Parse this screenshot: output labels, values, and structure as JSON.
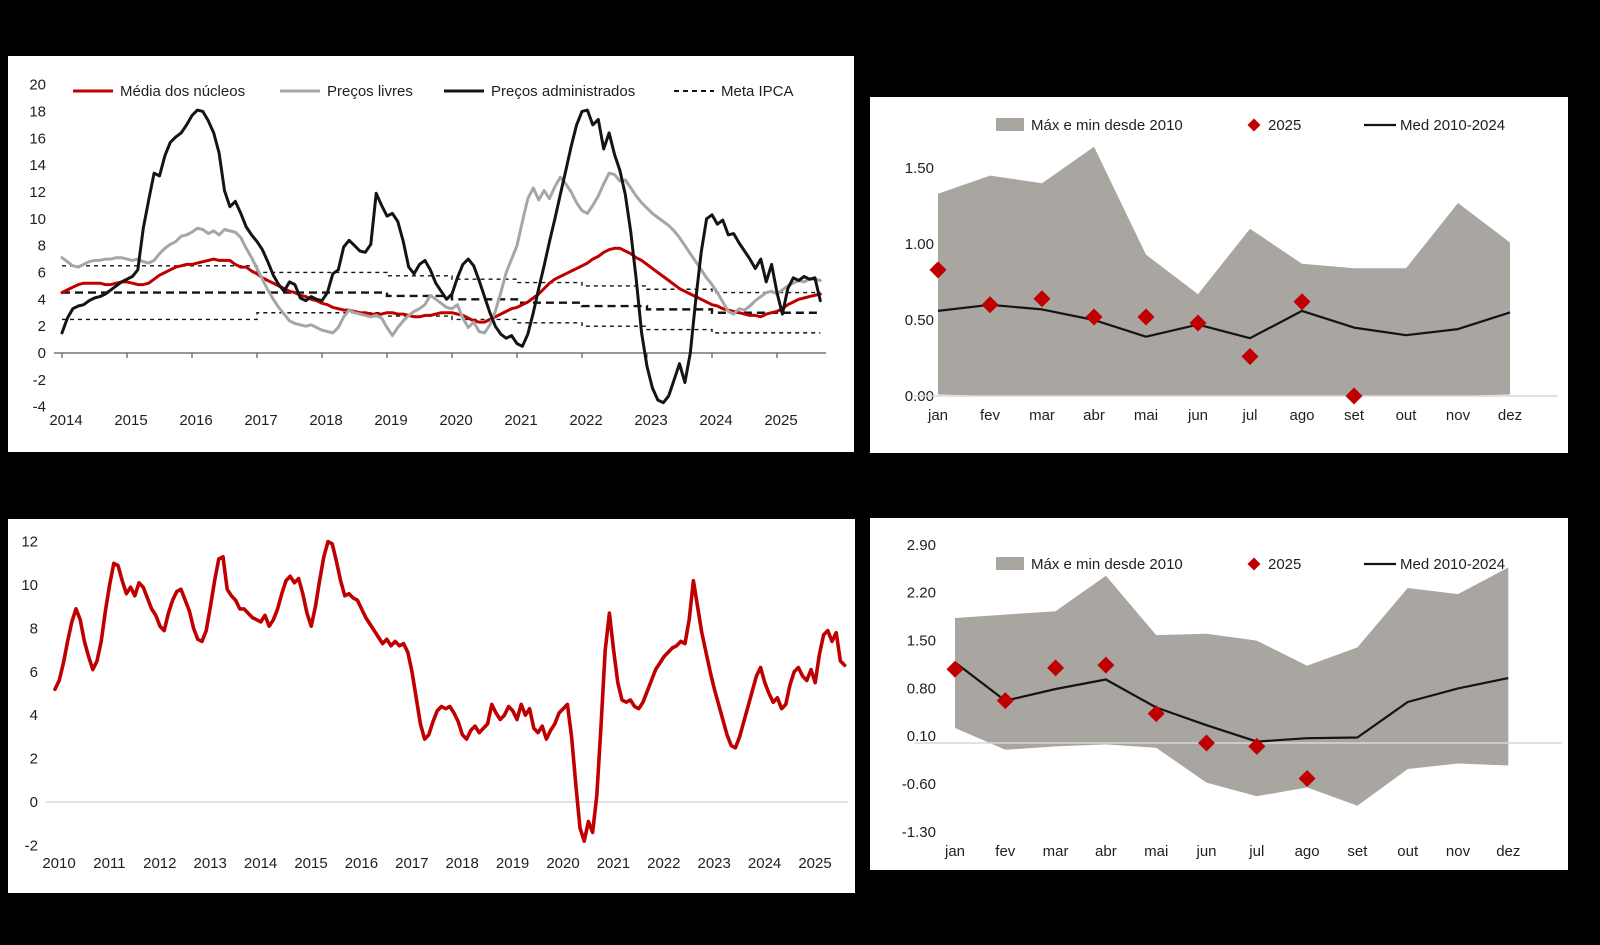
{
  "page": {
    "background": "#000000",
    "panel_background": "#FFFFFF"
  },
  "palette": {
    "red": "#C00000",
    "gray_series": "#A6A6A6",
    "black_series": "#141414",
    "band_gray": "#A9A5A0",
    "zero_line": "#D9D9D9",
    "axis_line": "#595959",
    "text": "#1F1F1F"
  },
  "chart_data": [
    {
      "id": "nucleos-e-precos",
      "panel": "top-left",
      "type": "line",
      "x_start_year": 2014,
      "points_per_year": 12,
      "ylim": [
        -4,
        20
      ],
      "yticks": [
        "20",
        "18",
        "16",
        "14",
        "12",
        "10",
        "8",
        "6",
        "4",
        "2",
        "0",
        "-2",
        "-4"
      ],
      "xticks": [
        "2014",
        "2015",
        "2016",
        "2017",
        "2018",
        "2019",
        "2020",
        "2021",
        "2022",
        "2023",
        "2024",
        "2025"
      ],
      "series": [
        {
          "name": "Média dos núcleos",
          "color_key": "red",
          "width": 3,
          "values": [
            4.5,
            4.7,
            4.9,
            5.1,
            5.2,
            5.2,
            5.2,
            5.2,
            5.1,
            5.1,
            5.2,
            5.3,
            5.3,
            5.2,
            5.1,
            5.1,
            5.2,
            5.5,
            5.8,
            6.0,
            6.2,
            6.4,
            6.5,
            6.6,
            6.6,
            6.7,
            6.8,
            6.9,
            7.0,
            6.9,
            6.9,
            6.9,
            6.6,
            6.4,
            6.4,
            6.1,
            5.9,
            5.6,
            5.4,
            5.2,
            5.0,
            4.8,
            4.6,
            4.5,
            4.3,
            4.2,
            4.0,
            3.9,
            3.7,
            3.6,
            3.4,
            3.3,
            3.2,
            3.2,
            3.1,
            3.0,
            3.0,
            2.9,
            2.9,
            2.9,
            3.0,
            3.0,
            2.9,
            2.9,
            2.8,
            2.7,
            2.7,
            2.8,
            2.8,
            2.9,
            3.0,
            3.0,
            3.0,
            2.9,
            2.8,
            2.6,
            2.4,
            2.3,
            2.3,
            2.5,
            2.7,
            2.9,
            3.1,
            3.3,
            3.4,
            3.6,
            3.8,
            4.1,
            4.4,
            4.8,
            5.2,
            5.5,
            5.7,
            5.9,
            6.1,
            6.3,
            6.5,
            6.7,
            7.0,
            7.2,
            7.5,
            7.7,
            7.8,
            7.8,
            7.6,
            7.4,
            7.1,
            6.9,
            6.6,
            6.3,
            6.0,
            5.7,
            5.4,
            5.1,
            4.8,
            4.6,
            4.4,
            4.2,
            4.0,
            3.8,
            3.6,
            3.5,
            3.3,
            3.2,
            3.1,
            3.0,
            2.9,
            2.8,
            2.8,
            2.7,
            2.9,
            3.0,
            3.1,
            3.3,
            3.6,
            3.8,
            4.0,
            4.1,
            4.2,
            4.3,
            4.4
          ]
        },
        {
          "name": "Preços livres",
          "color_key": "gray_series",
          "width": 3,
          "values": [
            7.1,
            6.8,
            6.5,
            6.4,
            6.6,
            6.8,
            6.9,
            6.9,
            7.0,
            7.0,
            7.1,
            7.1,
            7.0,
            6.9,
            7.0,
            6.8,
            6.7,
            6.9,
            7.4,
            7.8,
            8.1,
            8.3,
            8.7,
            8.8,
            9.0,
            9.3,
            9.2,
            8.9,
            9.1,
            8.8,
            9.2,
            9.1,
            9.0,
            8.6,
            7.8,
            7.1,
            6.3,
            5.5,
            4.7,
            4.0,
            3.4,
            2.9,
            2.4,
            2.2,
            2.1,
            2.0,
            2.1,
            1.9,
            1.7,
            1.6,
            1.5,
            1.9,
            2.7,
            3.2,
            3.0,
            2.9,
            2.8,
            2.7,
            2.8,
            2.6,
            1.9,
            1.3,
            1.9,
            2.4,
            2.8,
            3.1,
            3.3,
            3.6,
            4.3,
            4.0,
            3.7,
            3.4,
            3.3,
            3.6,
            2.6,
            1.9,
            2.3,
            1.6,
            1.5,
            2.1,
            3.1,
            4.5,
            6.0,
            7.0,
            8.0,
            9.8,
            11.5,
            12.3,
            11.4,
            12.1,
            11.5,
            12.4,
            13.1,
            12.6,
            12.0,
            11.2,
            10.6,
            10.4,
            11.0,
            11.7,
            12.6,
            13.4,
            13.3,
            12.8,
            12.9,
            12.3,
            11.7,
            11.2,
            10.8,
            10.4,
            10.1,
            9.8,
            9.5,
            9.1,
            8.6,
            8.0,
            7.4,
            6.8,
            6.2,
            5.6,
            5.1,
            4.5,
            3.8,
            3.1,
            2.9,
            3.3,
            3.2,
            3.5,
            3.9,
            4.2,
            4.5,
            4.6,
            4.4,
            4.7,
            5.0,
            5.2,
            5.4,
            5.3,
            5.5,
            5.5,
            5.4
          ]
        },
        {
          "name": "Preços administrados",
          "color_key": "black_series",
          "width": 3,
          "values": [
            1.5,
            2.6,
            3.3,
            3.5,
            3.6,
            3.9,
            4.1,
            4.2,
            4.4,
            4.7,
            5.0,
            5.3,
            5.5,
            5.7,
            6.2,
            9.3,
            11.4,
            13.4,
            13.2,
            14.7,
            15.7,
            16.1,
            16.4,
            17.0,
            17.7,
            18.1,
            18.0,
            17.3,
            16.4,
            14.9,
            12.1,
            10.9,
            11.3,
            10.4,
            9.4,
            8.8,
            8.3,
            7.7,
            6.8,
            5.8,
            5.1,
            4.6,
            5.3,
            5.1,
            4.1,
            3.9,
            4.2,
            4.0,
            3.9,
            4.5,
            5.9,
            6.2,
            7.9,
            8.4,
            8.0,
            7.6,
            7.5,
            8.1,
            11.9,
            11.0,
            10.2,
            10.4,
            9.8,
            8.3,
            6.4,
            5.9,
            6.6,
            6.9,
            6.2,
            5.2,
            4.6,
            4.0,
            4.4,
            5.6,
            6.6,
            7.0,
            6.5,
            5.4,
            4.2,
            3.0,
            2.0,
            1.4,
            1.1,
            1.3,
            0.7,
            0.5,
            1.4,
            3.0,
            4.8,
            6.5,
            8.3,
            10.0,
            11.8,
            13.6,
            15.4,
            17.0,
            18.0,
            18.1,
            17.0,
            17.4,
            15.2,
            16.4,
            14.8,
            13.6,
            11.8,
            9.0,
            5.5,
            1.5,
            -1.0,
            -2.6,
            -3.5,
            -3.7,
            -3.2,
            -2.0,
            -0.8,
            -2.2,
            0.0,
            4.0,
            7.5,
            10.0,
            10.3,
            9.6,
            9.9,
            8.8,
            8.9,
            8.2,
            7.6,
            7.0,
            6.3,
            7.0,
            5.3,
            6.6,
            4.5,
            2.9,
            4.8,
            5.6,
            5.4,
            5.7,
            5.5,
            5.6,
            3.9
          ]
        }
      ],
      "meta": {
        "name": "Meta IPCA",
        "years": [
          2014,
          2015,
          2016,
          2017,
          2018,
          2019,
          2020,
          2021,
          2022,
          2023,
          2024,
          2025
        ],
        "center": [
          4.5,
          4.5,
          4.5,
          4.5,
          4.5,
          4.25,
          4.0,
          3.75,
          3.5,
          3.25,
          3.0,
          3.0
        ],
        "upper": [
          6.5,
          6.5,
          6.5,
          6.0,
          6.0,
          5.75,
          5.5,
          5.25,
          5.0,
          4.75,
          4.5,
          4.5
        ],
        "lower": [
          2.5,
          2.5,
          2.5,
          3.0,
          3.0,
          2.75,
          2.5,
          2.25,
          2.0,
          1.75,
          1.5,
          1.5
        ]
      }
    },
    {
      "id": "indicador-mensal",
      "panel": "bottom-left",
      "type": "line",
      "x_start_year": 2010,
      "points_per_year": 12,
      "ylim": [
        -2,
        12
      ],
      "yticks": [
        "12",
        "10",
        "8",
        "6",
        "4",
        "2",
        "0",
        "-2"
      ],
      "xticks": [
        "2010",
        "2011",
        "2012",
        "2013",
        "2014",
        "2015",
        "2016",
        "2017",
        "2018",
        "2019",
        "2020",
        "2021",
        "2022",
        "2023",
        "2024",
        "2025"
      ],
      "series": [
        {
          "name": "",
          "color_key": "red",
          "width": 3.6,
          "values": [
            5.2,
            5.6,
            6.4,
            7.4,
            8.3,
            8.9,
            8.4,
            7.4,
            6.7,
            6.1,
            6.5,
            7.4,
            8.8,
            10.0,
            11.0,
            10.9,
            10.2,
            9.6,
            9.9,
            9.5,
            10.1,
            9.9,
            9.4,
            8.9,
            8.6,
            8.1,
            7.9,
            8.7,
            9.3,
            9.7,
            9.8,
            9.3,
            8.8,
            8.0,
            7.5,
            7.4,
            7.9,
            9.0,
            10.2,
            11.2,
            11.3,
            9.8,
            9.5,
            9.3,
            8.9,
            8.9,
            8.7,
            8.5,
            8.4,
            8.3,
            8.6,
            8.1,
            8.4,
            8.9,
            9.6,
            10.2,
            10.4,
            10.1,
            10.3,
            9.6,
            8.7,
            8.1,
            9.0,
            10.2,
            11.3,
            12.0,
            11.9,
            11.1,
            10.2,
            9.5,
            9.6,
            9.4,
            9.3,
            8.9,
            8.5,
            8.2,
            7.9,
            7.6,
            7.3,
            7.5,
            7.2,
            7.4,
            7.2,
            7.3,
            6.9,
            6.0,
            4.8,
            3.6,
            2.9,
            3.1,
            3.7,
            4.2,
            4.4,
            4.3,
            4.4,
            4.1,
            3.7,
            3.1,
            2.9,
            3.3,
            3.5,
            3.2,
            3.4,
            3.6,
            4.5,
            4.1,
            3.8,
            4.0,
            4.4,
            4.2,
            3.8,
            4.5,
            4.0,
            4.3,
            3.4,
            3.2,
            3.5,
            2.9,
            3.3,
            3.6,
            4.1,
            4.3,
            4.5,
            3.0,
            0.8,
            -1.2,
            -1.8,
            -0.9,
            -1.4,
            0.3,
            3.5,
            7.0,
            8.7,
            7.0,
            5.5,
            4.7,
            4.6,
            4.7,
            4.4,
            4.3,
            4.6,
            5.1,
            5.6,
            6.1,
            6.4,
            6.7,
            6.9,
            7.1,
            7.2,
            7.4,
            7.3,
            8.4,
            10.2,
            9.0,
            7.8,
            6.9,
            6.0,
            5.2,
            4.5,
            3.8,
            3.1,
            2.6,
            2.5,
            3.0,
            3.7,
            4.4,
            5.1,
            5.8,
            6.2,
            5.5,
            5.0,
            4.6,
            4.8,
            4.3,
            4.5,
            5.4,
            6.0,
            6.2,
            5.8,
            5.6,
            6.1,
            5.5,
            6.8,
            7.7,
            7.9,
            7.4,
            7.8,
            6.5,
            6.3
          ]
        }
      ]
    },
    {
      "id": "sazonalidade-superior",
      "panel": "top-right",
      "type": "band_scatter",
      "categories": [
        "jan",
        "fev",
        "mar",
        "abr",
        "mai",
        "jun",
        "jul",
        "ago",
        "set",
        "out",
        "nov",
        "dez"
      ],
      "yticks": [
        "1.50",
        "1.00",
        "0.50",
        "0.00"
      ],
      "legend": {
        "band": "Máx e min desde 2010",
        "points": "2025",
        "line": "Med 2010-2024"
      },
      "band_max": [
        1.33,
        1.45,
        1.4,
        1.64,
        0.93,
        0.67,
        1.1,
        0.87,
        0.84,
        0.84,
        1.27,
        1.01
      ],
      "band_min": [
        0.01,
        0.0,
        0.0,
        0.0,
        0.0,
        0.0,
        0.0,
        0.0,
        0.0,
        0.0,
        0.0,
        0.01
      ],
      "line_med": [
        0.56,
        0.6,
        0.57,
        0.5,
        0.39,
        0.47,
        0.38,
        0.56,
        0.45,
        0.4,
        0.44,
        0.55
      ],
      "points_2025": [
        0.83,
        0.6,
        0.64,
        0.52,
        0.52,
        0.48,
        0.26,
        0.62,
        0.0
      ]
    },
    {
      "id": "sazonalidade-inferior",
      "panel": "bottom-right",
      "type": "band_scatter",
      "categories": [
        "jan",
        "fev",
        "mar",
        "abr",
        "mai",
        "jun",
        "jul",
        "ago",
        "set",
        "out",
        "nov",
        "dez"
      ],
      "yticks": [
        "2.90",
        "2.20",
        "1.50",
        "0.80",
        "0.10",
        "-0.60",
        "-1.30"
      ],
      "legend": {
        "band": "Máx e min desde 2010",
        "points": "2025",
        "line": "Med 2010-2024"
      },
      "band_max": [
        1.83,
        1.88,
        1.93,
        2.45,
        1.58,
        1.6,
        1.5,
        1.13,
        1.4,
        2.27,
        2.18,
        2.57
      ],
      "band_min": [
        0.22,
        -0.1,
        -0.05,
        -0.02,
        -0.07,
        -0.58,
        -0.78,
        -0.65,
        -0.92,
        -0.38,
        -0.3,
        -0.33
      ],
      "line_med": [
        1.18,
        0.62,
        0.79,
        0.93,
        0.52,
        0.26,
        0.02,
        0.07,
        0.08,
        0.6,
        0.8,
        0.95
      ],
      "points_2025": [
        1.08,
        0.62,
        1.1,
        1.14,
        0.43,
        0.0,
        -0.05,
        -0.52
      ]
    }
  ]
}
